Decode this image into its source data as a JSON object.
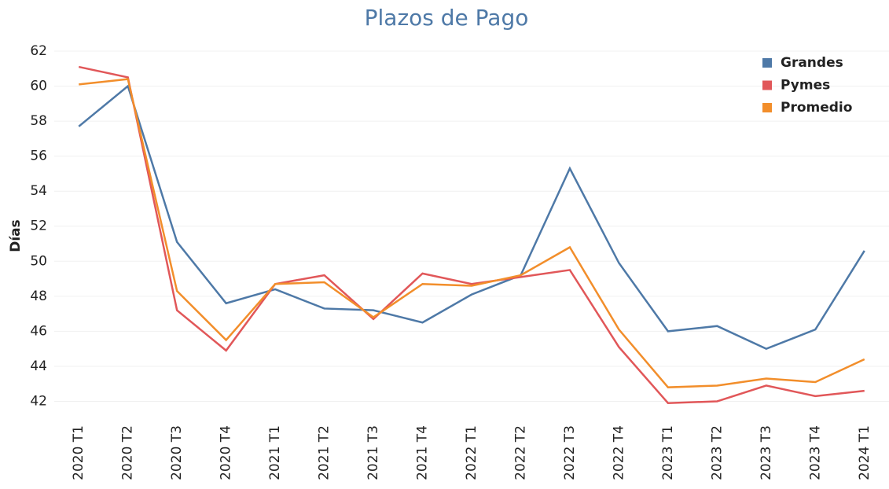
{
  "chart_data": {
    "type": "line",
    "title": "Plazos de Pago",
    "y_label": "Días",
    "categories": [
      "2020 T1",
      "2020 T2",
      "2020 T3",
      "2020 T4",
      "2021 T1",
      "2021 T2",
      "2021 T3",
      "2021 T4",
      "2022 T1",
      "2022 T2",
      "2022 T3",
      "2022 T4",
      "2023 T1",
      "2023 T2",
      "2023 T3",
      "2023 T4",
      "2024 T1"
    ],
    "series": [
      {
        "name": "Grandes",
        "color": "#4e79a7",
        "values": [
          57.7,
          60.0,
          51.1,
          47.6,
          48.4,
          47.3,
          47.2,
          46.5,
          48.1,
          49.2,
          55.3,
          49.9,
          46.0,
          46.3,
          45.0,
          46.1,
          50.6
        ]
      },
      {
        "name": "Pymes",
        "color": "#e15759",
        "values": [
          61.1,
          60.5,
          47.2,
          44.9,
          48.7,
          49.2,
          46.7,
          49.3,
          48.7,
          49.1,
          49.5,
          45.1,
          41.9,
          42.0,
          42.9,
          42.3,
          42.6
        ]
      },
      {
        "name": "Promedio",
        "color": "#f28e2b",
        "values": [
          60.1,
          60.4,
          48.3,
          45.5,
          48.7,
          48.8,
          46.8,
          48.7,
          48.6,
          49.2,
          50.8,
          46.1,
          42.8,
          42.9,
          43.3,
          43.1,
          44.4
        ]
      }
    ],
    "ylim": [
      40.9,
      62
    ],
    "yticks": [
      42,
      44,
      46,
      48,
      50,
      52,
      54,
      56,
      58,
      60,
      62
    ],
    "grid": true,
    "legend": "top-right"
  }
}
